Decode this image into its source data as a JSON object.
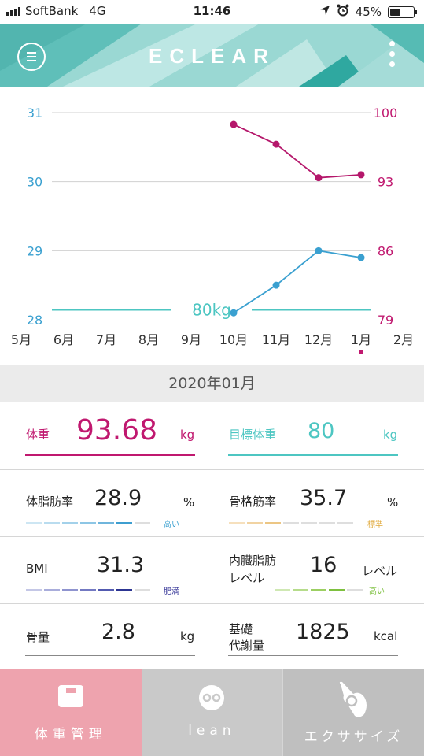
{
  "status_bar": {
    "carrier": "SoftBank",
    "network": "4G",
    "time": "11:46",
    "battery": "45%"
  },
  "header": {
    "logo": "ECLEAR",
    "menu_icon": "menu-icon",
    "more_icon": "more-vertical-icon"
  },
  "chart_data": {
    "type": "line",
    "categories": [
      "5月",
      "6月",
      "7月",
      "8月",
      "9月",
      "10月",
      "11月",
      "12月",
      "1月",
      "2月"
    ],
    "left_axis": {
      "ticks": [
        "31",
        "30",
        "29",
        "28"
      ],
      "ylim": [
        28,
        31
      ],
      "color": "#3aa0d0"
    },
    "right_axis": {
      "ticks": [
        "100",
        "93",
        "86",
        "79"
      ],
      "ylim": [
        79,
        100
      ],
      "color": "#c0186f"
    },
    "series": [
      {
        "axis": "right",
        "color": "#b5176b",
        "x": [
          "10月",
          "11月",
          "12月",
          "1月"
        ],
        "values": [
          98.8,
          96.8,
          93.4,
          93.7
        ]
      },
      {
        "axis": "left",
        "color": "#3aa0d0",
        "x": [
          "10月",
          "11月",
          "12月",
          "1月"
        ],
        "values": [
          28.1,
          28.5,
          29.0,
          28.9
        ]
      }
    ],
    "target_line": {
      "value": 80,
      "label": "80kg",
      "color": "#4dc6c2"
    },
    "selected_category": "1月"
  },
  "period": {
    "label": "2020年01月"
  },
  "metrics": {
    "weight": {
      "label": "体重",
      "value": "93.68",
      "unit": "kg",
      "color": "#c0186f"
    },
    "target_weight": {
      "label": "目標体重",
      "value": "80",
      "unit": "kg",
      "color": "#4dc6c2"
    },
    "body_fat": {
      "label": "体脂肪率",
      "value": "28.9",
      "unit": "%",
      "level": "高い",
      "level_color": "#3aa0d0"
    },
    "skeletal_muscle": {
      "label": "骨格筋率",
      "value": "35.7",
      "unit": "%",
      "level": "標準",
      "level_color": "#e0a93a"
    },
    "bmi": {
      "label": "BMI",
      "value": "31.3",
      "unit": "",
      "level": "肥満",
      "level_color": "#3a3a9a"
    },
    "visceral_fat": {
      "label_line1": "内臓脂肪",
      "label_line2": "レベル",
      "value": "16",
      "unit": "レベル",
      "level": "高い",
      "level_color": "#7ec03f"
    },
    "bone_mass": {
      "label": "骨量",
      "value": "2.8",
      "unit": "kg"
    },
    "bmr": {
      "label_line1": "基礎",
      "label_line2": "代謝量",
      "value": "1825",
      "unit": "kcal"
    }
  },
  "tabs": [
    {
      "label": "体重管理",
      "icon": "scale-icon",
      "bg": "#eea3ae"
    },
    {
      "label": "lean",
      "icon": "lean-icon",
      "bg": "#c9c9c9"
    },
    {
      "label": "エクササイズ",
      "icon": "exercise-hand-icon",
      "bg": "#bfbfbf"
    }
  ]
}
